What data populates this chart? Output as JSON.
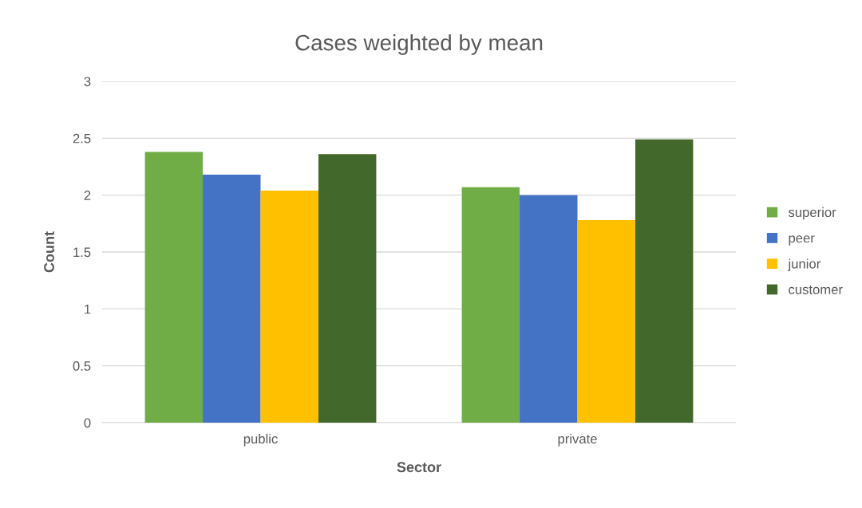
{
  "chart_data": {
    "type": "bar",
    "title": "Cases weighted by mean",
    "xlabel": "Sector",
    "ylabel": "Count",
    "categories": [
      "public",
      "private"
    ],
    "series": [
      {
        "name": "superior",
        "color": "#70ad47",
        "values": [
          2.38,
          2.07
        ]
      },
      {
        "name": "peer",
        "color": "#4472c4",
        "values": [
          2.18,
          2.0
        ]
      },
      {
        "name": "junior",
        "color": "#ffc000",
        "values": [
          2.04,
          1.78
        ]
      },
      {
        "name": "customer",
        "color": "#43682b",
        "values": [
          2.36,
          2.49
        ]
      }
    ],
    "ylim": [
      0,
      3
    ],
    "yticks": [
      0,
      0.5,
      1,
      1.5,
      2,
      2.5,
      3
    ],
    "grid": "y",
    "legend": "right"
  }
}
